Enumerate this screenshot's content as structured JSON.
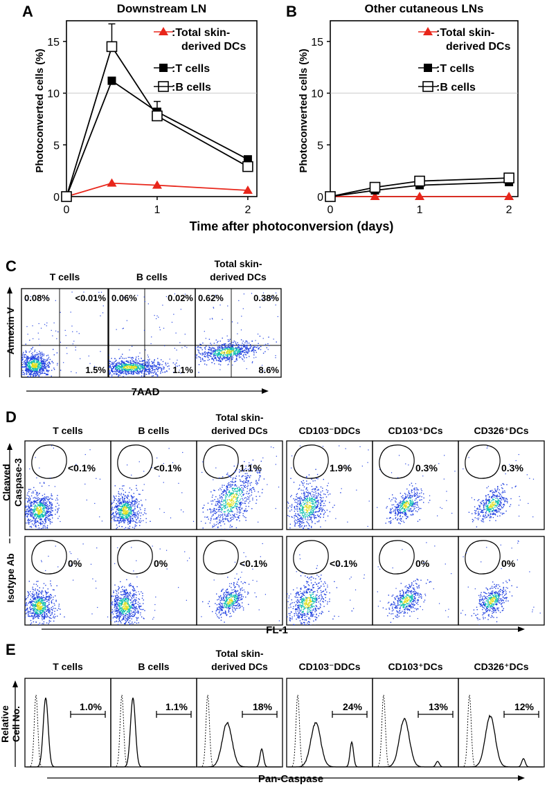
{
  "panel_letters": {
    "a": "A",
    "b": "B",
    "c": "C",
    "d": "D",
    "e": "E"
  },
  "colors": {
    "dc": "#e8261b",
    "line": "#000000",
    "dens_low": "#2040e0",
    "dens_mid": "#10c0b0",
    "dens_high": "#e0e020"
  },
  "chart_data": [
    {
      "type": "line",
      "panel": "A",
      "title": "Downstream LN",
      "xlabel": "Time after photoconversion (days)",
      "ylabel": "Photoconverted cells (%)",
      "xlim": [
        0,
        2.1
      ],
      "ylim": [
        0,
        17
      ],
      "xticks": [
        0,
        1,
        2
      ],
      "yticks": [
        0,
        5,
        10,
        15
      ],
      "series": [
        {
          "name": ":Total skin-derived DCs",
          "legend": [
            ":Total skin-",
            "derived DCs"
          ],
          "marker": "triangle",
          "color": "#e8261b",
          "x": [
            0,
            0.5,
            1,
            2
          ],
          "y": [
            0,
            1.3,
            1.1,
            0.6
          ]
        },
        {
          "name": ":T cells",
          "legend": [
            ":T cells"
          ],
          "marker": "square-filled",
          "color": "#000000",
          "x": [
            0,
            0.5,
            1,
            2
          ],
          "y": [
            0,
            11.2,
            8.2,
            3.6
          ],
          "err": [
            0,
            0,
            0,
            0
          ]
        },
        {
          "name": ":B cells",
          "legend": [
            ":B cells"
          ],
          "marker": "square-open",
          "color": "#000000",
          "x": [
            0,
            0.5,
            1,
            2
          ],
          "y": [
            0,
            14.5,
            7.8,
            2.9
          ],
          "err": [
            0,
            2.2,
            1.4,
            0
          ]
        }
      ]
    },
    {
      "type": "line",
      "panel": "B",
      "title": "Other cutaneous LNs",
      "xlabel": "Time after photoconversion (days)",
      "ylabel": "Photoconverted cells (%)",
      "xlim": [
        0,
        2.1
      ],
      "ylim": [
        0,
        17
      ],
      "xticks": [
        0,
        1,
        2
      ],
      "yticks": [
        0,
        5,
        10,
        15
      ],
      "series": [
        {
          "name": ":Total skin-derived DCs",
          "legend": [
            ":Total skin-",
            "derived DCs"
          ],
          "marker": "triangle",
          "color": "#e8261b",
          "x": [
            0,
            0.5,
            1,
            2
          ],
          "y": [
            0,
            0,
            0,
            0
          ]
        },
        {
          "name": ":T cells",
          "legend": [
            ":T cells"
          ],
          "marker": "square-filled",
          "color": "#000000",
          "x": [
            0,
            0.5,
            1,
            2
          ],
          "y": [
            0,
            0.6,
            1.1,
            1.4
          ]
        },
        {
          "name": ":B cells",
          "legend": [
            ":B cells"
          ],
          "marker": "square-open",
          "color": "#000000",
          "x": [
            0,
            0.5,
            1,
            2
          ],
          "y": [
            0,
            0.9,
            1.5,
            1.8
          ]
        }
      ]
    },
    {
      "type": "scatter",
      "panel": "C",
      "xlabel": "7AAD",
      "ylabel": "Annexin V",
      "plots": [
        {
          "title": [
            "T cells"
          ],
          "ul": "0.08%",
          "ur": "<0.01%",
          "lr": "1.5%",
          "cluster": "low"
        },
        {
          "title": [
            "B cells"
          ],
          "ul": "0.06%",
          "ur": "0.02%",
          "lr": "1.1%",
          "cluster": "wide"
        },
        {
          "title": [
            "Total skin-",
            "derived DCs"
          ],
          "ul": "0.62%",
          "ur": "0.38%",
          "lr": "8.6%",
          "cluster": "mid"
        }
      ]
    },
    {
      "type": "scatter",
      "panel": "D",
      "xlabel": "FL-1",
      "row_labels": [
        [
          "Cleaved",
          "Caspase-3"
        ],
        [
          "Isotype Ab"
        ]
      ],
      "columns": [
        [
          "T cells"
        ],
        [
          "B cells"
        ],
        [
          "Total skin-",
          "derived DCs"
        ],
        [
          "CD103⁻DDCs"
        ],
        [
          "CD103⁺DCs"
        ],
        [
          "CD326⁺DCs"
        ]
      ],
      "values": [
        [
          "<0.1%",
          "<0.1%",
          "1.1%",
          "1.9%",
          "0.3%",
          "0.3%"
        ],
        [
          "0%",
          "0%",
          "<0.1%",
          "<0.1%",
          "0%",
          "0%"
        ]
      ]
    },
    {
      "type": "histogram",
      "panel": "E",
      "xlabel": "Pan-Caspase",
      "ylabel": [
        "Relative",
        "Cell No."
      ],
      "columns": [
        [
          "T cells"
        ],
        [
          "B cells"
        ],
        [
          "Total skin-",
          "derived DCs"
        ],
        [
          "CD103⁻DDCs"
        ],
        [
          "CD103⁺DCs"
        ],
        [
          "CD326⁺DCs"
        ]
      ],
      "values": [
        "1.0%",
        "1.1%",
        "18%",
        "24%",
        "13%",
        "12%"
      ]
    }
  ]
}
